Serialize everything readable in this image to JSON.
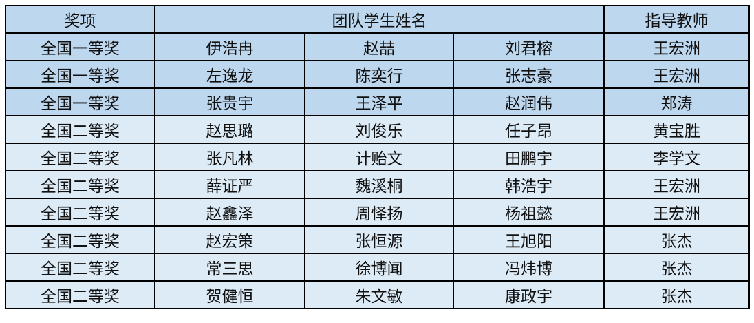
{
  "header": {
    "award": "奖项",
    "students": "团队学生姓名",
    "teacher": "指导教师"
  },
  "colors": {
    "header_bg": "#bdd7ee",
    "first_prize_bg": "#bdd7ee",
    "second_prize_bg": "#ddebf7"
  },
  "rows": [
    {
      "award": "全国一等奖",
      "s1": "伊浩冉",
      "s2": "赵喆",
      "s3": "刘君榕",
      "teacher": "王宏洲"
    },
    {
      "award": "全国一等奖",
      "s1": "左逸龙",
      "s2": "陈奕行",
      "s3": "张志豪",
      "teacher": "王宏洲"
    },
    {
      "award": "全国一等奖",
      "s1": "张贵宇",
      "s2": "王泽平",
      "s3": "赵润伟",
      "teacher": "郑涛"
    },
    {
      "award": "全国二等奖",
      "s1": "赵思璐",
      "s2": "刘俊乐",
      "s3": "任子昂",
      "teacher": "黄宝胜"
    },
    {
      "award": "全国二等奖",
      "s1": "张凡林",
      "s2": "计贻文",
      "s3": "田鹏宇",
      "teacher": "李学文"
    },
    {
      "award": "全国二等奖",
      "s1": "薛证严",
      "s2": "魏溪桐",
      "s3": "韩浩宇",
      "teacher": "王宏洲"
    },
    {
      "award": "全国二等奖",
      "s1": "赵鑫泽",
      "s2": "周怿扬",
      "s3": "杨祖懿",
      "teacher": "王宏洲"
    },
    {
      "award": "全国二等奖",
      "s1": "赵宏策",
      "s2": "张恒源",
      "s3": "王旭阳",
      "teacher": "张杰"
    },
    {
      "award": "全国二等奖",
      "s1": "常三思",
      "s2": "徐博闻",
      "s3": "冯炜博",
      "teacher": "张杰"
    },
    {
      "award": "全国二等奖",
      "s1": "贺健恒",
      "s2": "朱文敏",
      "s3": "康政宇",
      "teacher": "张杰"
    }
  ]
}
